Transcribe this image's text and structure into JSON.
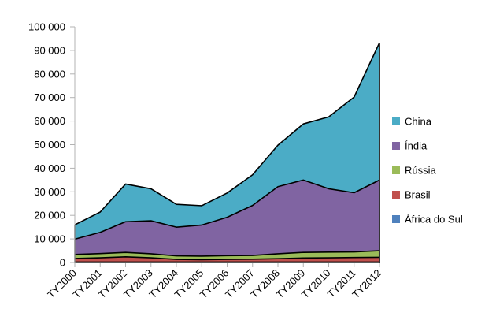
{
  "chart_data": {
    "type": "area",
    "stacked": true,
    "categories": [
      "TY2000",
      "TY2001",
      "TY2002",
      "TY2003",
      "TY2004",
      "TY2005",
      "TY2006",
      "TY2007",
      "TY2008",
      "TY2009",
      "TY2010",
      "TY2011",
      "TY2012"
    ],
    "series": [
      {
        "name": "África do Sul",
        "color": "#4f81bd",
        "values": [
          200,
          200,
          200,
          200,
          200,
          200,
          200,
          200,
          200,
          200,
          200,
          200,
          200
        ]
      },
      {
        "name": "Brasil",
        "color": "#c0504d",
        "values": [
          1500,
          1800,
          2200,
          1800,
          1100,
          1000,
          1100,
          1200,
          1400,
          1700,
          1800,
          1900,
          2000
        ]
      },
      {
        "name": "Rússia",
        "color": "#9bbb59",
        "values": [
          1700,
          1800,
          1900,
          1700,
          1500,
          1500,
          1600,
          1600,
          2100,
          2400,
          2400,
          2400,
          2800
        ]
      },
      {
        "name": "Índia",
        "color": "#8064a2",
        "values": [
          6500,
          9000,
          13000,
          14000,
          12200,
          13200,
          16300,
          21200,
          28500,
          30700,
          26900,
          25100,
          30000
        ]
      },
      {
        "name": "China",
        "color": "#4bacc6",
        "values": [
          6100,
          8600,
          16000,
          13600,
          9700,
          8200,
          10300,
          13000,
          17600,
          23800,
          30500,
          40600,
          58300
        ]
      }
    ],
    "legend_order": [
      "China",
      "Índia",
      "Rússia",
      "Brasil",
      "África do Sul"
    ],
    "legend_position": "right",
    "ylim": [
      0,
      100000
    ],
    "yticks": [
      0,
      10000,
      20000,
      30000,
      40000,
      50000,
      60000,
      70000,
      80000,
      90000,
      100000
    ],
    "ytick_labels": [
      "0",
      "10 000",
      "20 000",
      "30 000",
      "40 000",
      "50 000",
      "60 000",
      "70 000",
      "80 000",
      "90 000",
      "100 000"
    ],
    "grid": false
  }
}
